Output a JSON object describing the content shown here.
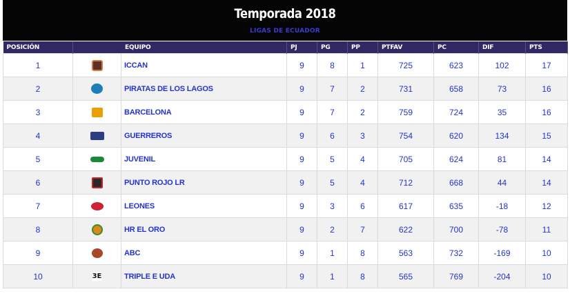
{
  "header": {
    "title": "Temporada 2018",
    "subtitle": "LIGAS DE ECUADOR"
  },
  "columns": [
    "POSICIÓN",
    "EQUIPO",
    "PJ",
    "PG",
    "PP",
    "PTFAV",
    "PC",
    "DIF",
    "PTS"
  ],
  "rows": [
    {
      "pos": "1",
      "team": "ICCAN",
      "logo": "iccan-logo",
      "pj": "9",
      "pg": "8",
      "pp": "1",
      "ptfav": "725",
      "pc": "623",
      "dif": "102",
      "pts": "17"
    },
    {
      "pos": "2",
      "team": "PIRATAS DE LOS LAGOS",
      "logo": "piratas-logo",
      "pj": "9",
      "pg": "7",
      "pp": "2",
      "ptfav": "731",
      "pc": "658",
      "dif": "73",
      "pts": "16"
    },
    {
      "pos": "3",
      "team": "BARCELONA",
      "logo": "barcelona-logo",
      "pj": "9",
      "pg": "7",
      "pp": "2",
      "ptfav": "759",
      "pc": "724",
      "dif": "35",
      "pts": "16"
    },
    {
      "pos": "4",
      "team": "GUERREROS",
      "logo": "guerreros-logo",
      "pj": "9",
      "pg": "6",
      "pp": "3",
      "ptfav": "754",
      "pc": "620",
      "dif": "134",
      "pts": "15"
    },
    {
      "pos": "5",
      "team": "JUVENIL",
      "logo": "juvenil-logo",
      "pj": "9",
      "pg": "5",
      "pp": "4",
      "ptfav": "705",
      "pc": "624",
      "dif": "81",
      "pts": "14"
    },
    {
      "pos": "6",
      "team": "PUNTO ROJO LR",
      "logo": "punto-rojo-logo",
      "pj": "9",
      "pg": "5",
      "pp": "4",
      "ptfav": "712",
      "pc": "668",
      "dif": "44",
      "pts": "14"
    },
    {
      "pos": "7",
      "team": "LEONES",
      "logo": "leones-logo",
      "pj": "9",
      "pg": "3",
      "pp": "6",
      "ptfav": "617",
      "pc": "635",
      "dif": "-18",
      "pts": "12"
    },
    {
      "pos": "8",
      "team": "HR EL ORO",
      "logo": "hr-el-oro-logo",
      "pj": "9",
      "pg": "2",
      "pp": "7",
      "ptfav": "622",
      "pc": "700",
      "dif": "-78",
      "pts": "11"
    },
    {
      "pos": "9",
      "team": "ABC",
      "logo": "abc-logo",
      "pj": "9",
      "pg": "1",
      "pp": "8",
      "ptfav": "563",
      "pc": "732",
      "dif": "-169",
      "pts": "10"
    },
    {
      "pos": "10",
      "team": "TRIPLE E UDA",
      "logo": "triple-e-logo",
      "logo_text": "3E",
      "pj": "9",
      "pg": "1",
      "pp": "8",
      "ptfav": "565",
      "pc": "769",
      "dif": "-204",
      "pts": "10"
    }
  ],
  "colors": {
    "title_bg": "#050505",
    "header_bg": "#322863",
    "link_text": "#2233cc",
    "row_alt": "#f1f1f1"
  }
}
